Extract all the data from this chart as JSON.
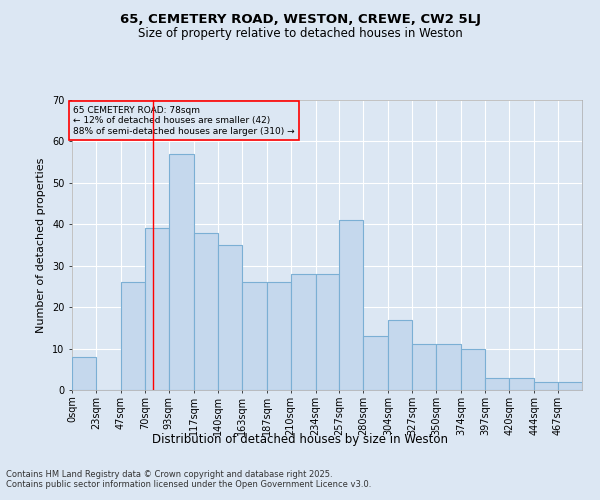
{
  "title1": "65, CEMETERY ROAD, WESTON, CREWE, CW2 5LJ",
  "title2": "Size of property relative to detached houses in Weston",
  "xlabel": "Distribution of detached houses by size in Weston",
  "ylabel": "Number of detached properties",
  "bar_color": "#c5d8ed",
  "bar_edge_color": "#7bafd4",
  "bin_labels": [
    "0sqm",
    "23sqm",
    "47sqm",
    "70sqm",
    "93sqm",
    "117sqm",
    "140sqm",
    "163sqm",
    "187sqm",
    "210sqm",
    "234sqm",
    "257sqm",
    "280sqm",
    "304sqm",
    "327sqm",
    "350sqm",
    "374sqm",
    "397sqm",
    "420sqm",
    "444sqm",
    "467sqm"
  ],
  "bar_heights": [
    8,
    0,
    26,
    39,
    57,
    38,
    35,
    26,
    26,
    28,
    28,
    41,
    13,
    17,
    11,
    11,
    10,
    3,
    3,
    2,
    2
  ],
  "bin_edges": [
    0,
    23,
    47,
    70,
    93,
    117,
    140,
    163,
    187,
    210,
    234,
    257,
    280,
    304,
    327,
    350,
    374,
    397,
    420,
    444,
    467,
    490
  ],
  "ylim": [
    0,
    70
  ],
  "yticks": [
    0,
    10,
    20,
    30,
    40,
    50,
    60,
    70
  ],
  "property_line_x": 78,
  "annotation_title": "65 CEMETERY ROAD: 78sqm",
  "annotation_line2": "← 12% of detached houses are smaller (42)",
  "annotation_line3": "88% of semi-detached houses are larger (310) →",
  "bg_color": "#dce7f3",
  "grid_color": "#ffffff",
  "footer1": "Contains HM Land Registry data © Crown copyright and database right 2025.",
  "footer2": "Contains public sector information licensed under the Open Government Licence v3.0."
}
